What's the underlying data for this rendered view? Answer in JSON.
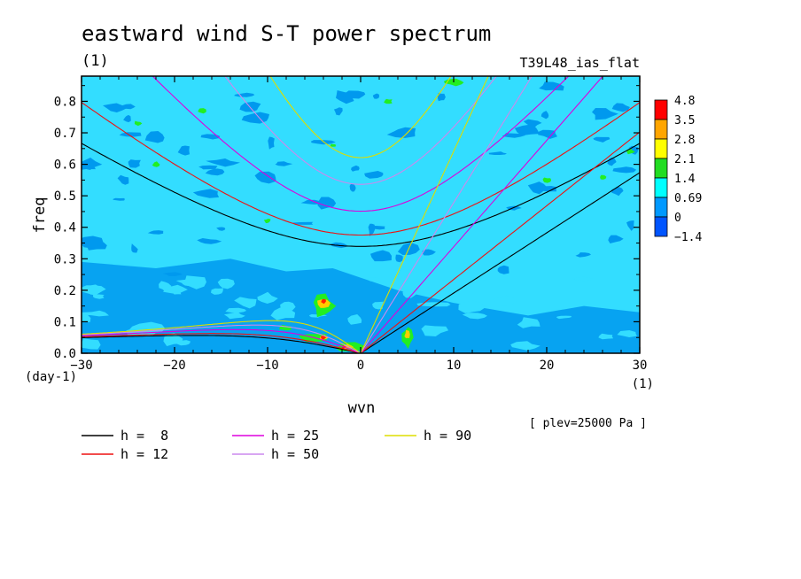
{
  "chart_data": {
    "type": "heatmap",
    "title": "eastward wind S-T power spectrum",
    "subtitle_left": "(1)",
    "subtitle_right": "T39L48_ias_flat",
    "xlabel": "wvn",
    "xunit": "(1)",
    "ylabel": "freq",
    "yunit": "(day-1)",
    "xlim": [
      -30,
      30
    ],
    "ylim": [
      0,
      0.88
    ],
    "xticks": [
      -30,
      -20,
      -10,
      0,
      10,
      20,
      30
    ],
    "yticks": [
      0.0,
      0.1,
      0.2,
      0.3,
      0.4,
      0.5,
      0.6,
      0.7,
      0.8
    ],
    "level_note": "[ plev=25000 Pa ]",
    "colorbar": {
      "labels": [
        "4.8",
        "3.5",
        "2.8",
        "2.1",
        "1.4",
        "0.69",
        "0",
        "-1.4"
      ],
      "colors": [
        "#ff0000",
        "#ffa500",
        "#ffff00",
        "#22dd22",
        "#00ffff",
        "#0099ff",
        "#0055ff"
      ]
    },
    "background_colors": {
      "base": "#33ddff",
      "low": "#0099ee",
      "high": "#22ee22",
      "peak": "#ffcc00",
      "max": "#ff2200"
    },
    "grid": false,
    "legend_position": "bottom",
    "dispersion_curves": [
      {
        "name": "h =  8",
        "h": 8,
        "color": "#000000"
      },
      {
        "name": "h = 12",
        "h": 12,
        "color": "#ee1111"
      },
      {
        "name": "h = 25",
        "h": 25,
        "color": "#dd00dd"
      },
      {
        "name": "h = 50",
        "h": 50,
        "color": "#cc88ee"
      },
      {
        "name": "h = 90",
        "h": 90,
        "color": "#dddd00"
      }
    ]
  }
}
